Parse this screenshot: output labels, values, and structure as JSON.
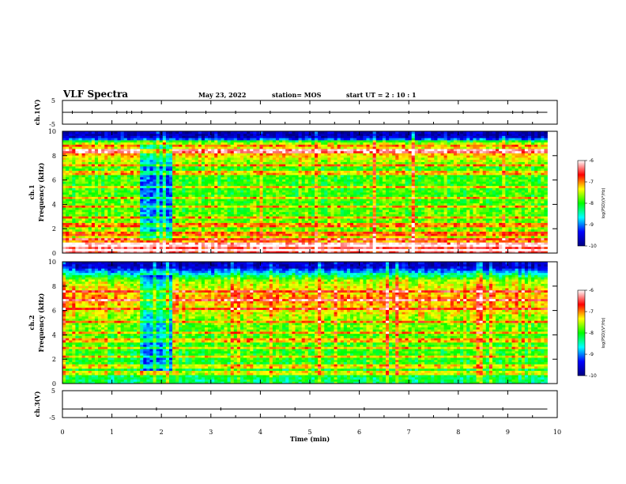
{
  "header": {
    "title": "VLF Spectra",
    "date": "May 23, 2022",
    "station": "station= MOS",
    "start": "start  UT =   2 : 10 : 1"
  },
  "colorscale": {
    "min": -10,
    "max": -6,
    "ticks": [
      "-6",
      "-7",
      "-8",
      "-9",
      "-10"
    ],
    "label": "log(PSD)(V²/Hz)",
    "stops": [
      "#000080",
      "#0000ff",
      "#00ffff",
      "#00ff00",
      "#ffff00",
      "#ff0000",
      "#ffffff"
    ]
  },
  "chart_data": [
    {
      "type": "line",
      "ylabel": "ch.1(V)",
      "ylim": [
        -5,
        5
      ],
      "yticks": [
        "5",
        "-5"
      ],
      "xlim": [
        0,
        10
      ],
      "level_volts": 0,
      "spike_times_min": [
        0.2,
        0.6,
        1.1,
        1.3,
        1.4,
        1.6,
        2.5,
        2.9,
        3.5,
        4.2,
        5.0,
        5.4,
        6.2,
        7.0,
        7.4,
        8.1,
        8.6,
        9.1,
        9.3,
        9.6
      ]
    },
    {
      "type": "heatmap",
      "ylabel": "ch.1\nFrequency (kHz)",
      "yticks": [
        "0",
        "2",
        "4",
        "6",
        "8",
        "10"
      ],
      "ylim": [
        0,
        10
      ],
      "xlim": [
        0,
        9.8
      ],
      "data_units": "log(PSD)(V²/Hz)",
      "background_level_by_freq_khz": [
        {
          "f_khz": 0.5,
          "level": -6.5
        },
        {
          "f_khz": 1.5,
          "level": -7.6
        },
        {
          "f_khz": 3.0,
          "level": -7.8
        },
        {
          "f_khz": 5.0,
          "level": -7.9
        },
        {
          "f_khz": 7.0,
          "level": -7.9
        },
        {
          "f_khz": 8.5,
          "level": -6.9
        },
        {
          "f_khz": 9.6,
          "level": -9.7
        }
      ],
      "quiet_intervals_min": [
        [
          1.6,
          2.2
        ]
      ],
      "spectral_lines_khz": [
        0.3,
        0.7,
        1.2,
        1.6,
        2.3,
        3.0,
        3.8,
        4.6,
        5.4,
        6.6,
        7.2,
        8.4,
        8.8,
        9.1
      ]
    },
    {
      "type": "heatmap",
      "ylabel": "ch.2\nFrequency (kHz)",
      "yticks": [
        "0",
        "2",
        "4",
        "6",
        "8",
        "10"
      ],
      "ylim": [
        0,
        10
      ],
      "xlim": [
        0,
        9.8
      ],
      "data_units": "log(PSD)(V²/Hz)",
      "background_level_by_freq_khz": [
        {
          "f_khz": 0.5,
          "level": -8.2
        },
        {
          "f_khz": 1.5,
          "level": -8.0
        },
        {
          "f_khz": 3.0,
          "level": -7.9
        },
        {
          "f_khz": 5.0,
          "level": -7.7
        },
        {
          "f_khz": 7.0,
          "level": -7.0
        },
        {
          "f_khz": 8.5,
          "level": -7.6
        },
        {
          "f_khz": 9.6,
          "level": -9.6
        }
      ],
      "quiet_intervals_min": [
        [
          1.6,
          2.2
        ]
      ],
      "spectral_lines_khz": [
        0.9,
        1.4,
        2.2,
        3.0,
        3.6,
        4.2,
        5.1,
        6.2,
        6.9,
        7.6
      ]
    },
    {
      "type": "line",
      "ylabel": "ch.3(V)",
      "ylim": [
        -5,
        5
      ],
      "yticks": [
        "5",
        "-5"
      ],
      "xlim": [
        0,
        10
      ],
      "xlabel": "Time (min)",
      "xticks": [
        "0",
        "1",
        "2",
        "3",
        "4",
        "5",
        "6",
        "7",
        "8",
        "9",
        "10"
      ],
      "level_volts": -1.8,
      "spike_times_min": [
        0.4,
        1.9,
        3.2,
        4.7,
        6.1,
        7.8,
        8.9
      ]
    }
  ]
}
